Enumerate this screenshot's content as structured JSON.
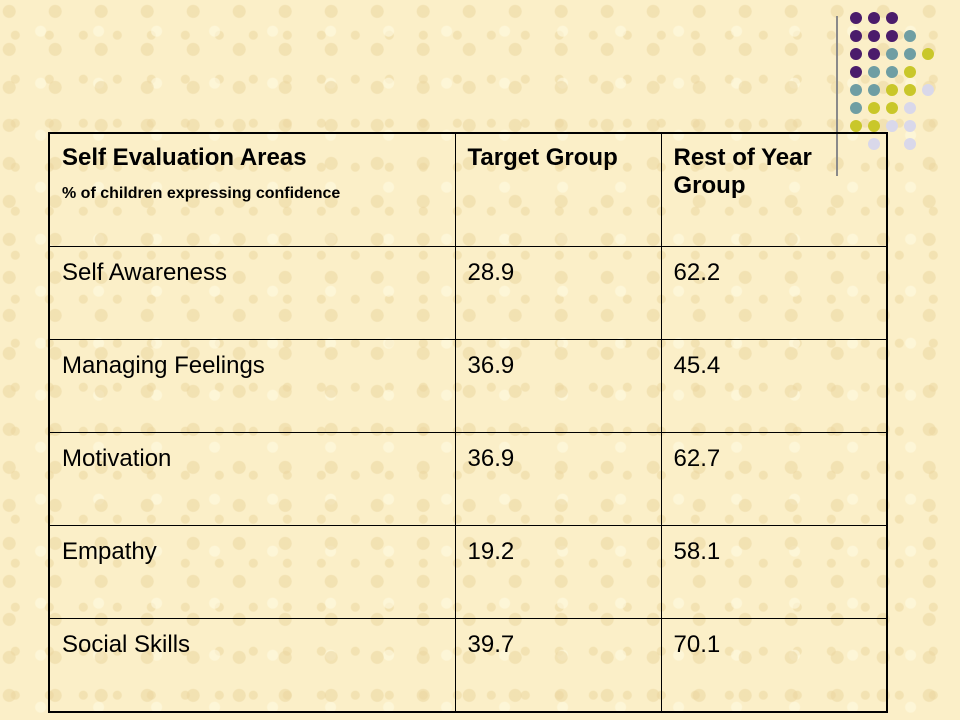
{
  "colors": {
    "background": "#fbefc8",
    "dot_purple": "#4b1c6b",
    "dot_teal": "#6f9ea3",
    "dot_lime": "#c9c72a",
    "dot_lavender": "#d9d8ea"
  },
  "table": {
    "headers": {
      "col1_title": "Self Evaluation Areas",
      "col1_subtitle": "% of children expressing confidence",
      "col2": "Target Group",
      "col3": "Rest of Year Group"
    },
    "rows": [
      {
        "area": "Self Awareness",
        "target": "28.9",
        "rest": "62.2"
      },
      {
        "area": "Managing Feelings",
        "target": "36.9",
        "rest": "45.4"
      },
      {
        "area": "Motivation",
        "target": "36.9",
        "rest": "62.7"
      },
      {
        "area": "Empathy",
        "target": "19.2",
        "rest": "58.1"
      },
      {
        "area": "Social Skills",
        "target": "39.7",
        "rest": "70.1"
      }
    ]
  }
}
